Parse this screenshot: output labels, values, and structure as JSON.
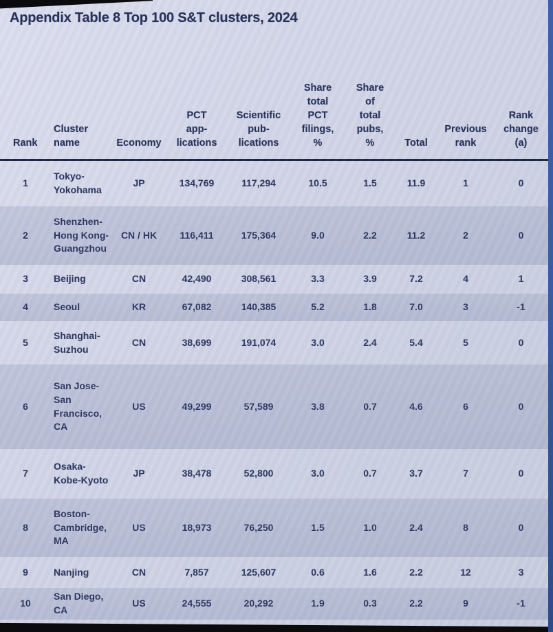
{
  "title": "Appendix Table 8 Top 100 S&T clusters, 2024",
  "colors": {
    "screen_background": "#d2d5e6",
    "row_stripe_dark": "#c3c9dc",
    "text_navy": "#222d54",
    "header_rule": "#17213f",
    "bezel_black": "#0b0b0d",
    "right_edge_blue": "#3a5ba3"
  },
  "table": {
    "columns": [
      {
        "key": "rank",
        "label": "Rank"
      },
      {
        "key": "cluster",
        "label": "Cluster\nname"
      },
      {
        "key": "economy",
        "label": "Economy"
      },
      {
        "key": "pct",
        "label": "PCT\napp-\nlications"
      },
      {
        "key": "pubs",
        "label": "Scientific\npub-\nlications"
      },
      {
        "key": "share_pct",
        "label": "Share\ntotal\nPCT\nfilings,\n%"
      },
      {
        "key": "share_pubs",
        "label": "Share\nof\ntotal\npubs,\n%"
      },
      {
        "key": "total",
        "label": "Total"
      },
      {
        "key": "prev",
        "label": "Previous\nrank"
      },
      {
        "key": "change",
        "label": "Rank\nchange\n(a)"
      }
    ],
    "rows": [
      {
        "rank": "1",
        "cluster": "Tokyo-\nYokohama",
        "economy": "JP",
        "pct": "134,769",
        "pubs": "117,294",
        "share_pct": "10.5",
        "share_pubs": "1.5",
        "total": "11.9",
        "prev": "1",
        "change": "0"
      },
      {
        "rank": "2",
        "cluster": "Shenzhen-\nHong Kong-\nGuangzhou",
        "economy": "CN / HK",
        "pct": "116,411",
        "pubs": "175,364",
        "share_pct": "9.0",
        "share_pubs": "2.2",
        "total": "11.2",
        "prev": "2",
        "change": "0"
      },
      {
        "rank": "3",
        "cluster": "Beijing",
        "economy": "CN",
        "pct": "42,490",
        "pubs": "308,561",
        "share_pct": "3.3",
        "share_pubs": "3.9",
        "total": "7.2",
        "prev": "4",
        "change": "1"
      },
      {
        "rank": "4",
        "cluster": "Seoul",
        "economy": "KR",
        "pct": "67,082",
        "pubs": "140,385",
        "share_pct": "5.2",
        "share_pubs": "1.8",
        "total": "7.0",
        "prev": "3",
        "change": "-1"
      },
      {
        "rank": "5",
        "cluster": "Shanghai-\nSuzhou",
        "economy": "CN",
        "pct": "38,699",
        "pubs": "191,074",
        "share_pct": "3.0",
        "share_pubs": "2.4",
        "total": "5.4",
        "prev": "5",
        "change": "0"
      },
      {
        "rank": "6",
        "cluster": "San Jose-\nSan\nFrancisco,\nCA",
        "economy": "US",
        "pct": "49,299",
        "pubs": "57,589",
        "share_pct": "3.8",
        "share_pubs": "0.7",
        "total": "4.6",
        "prev": "6",
        "change": "0"
      },
      {
        "rank": "7",
        "cluster": "Osaka-\nKobe-Kyoto",
        "economy": "JP",
        "pct": "38,478",
        "pubs": "52,800",
        "share_pct": "3.0",
        "share_pubs": "0.7",
        "total": "3.7",
        "prev": "7",
        "change": "0"
      },
      {
        "rank": "8",
        "cluster": "Boston-\nCambridge,\nMA",
        "economy": "US",
        "pct": "18,973",
        "pubs": "76,250",
        "share_pct": "1.5",
        "share_pubs": "1.0",
        "total": "2.4",
        "prev": "8",
        "change": "0"
      },
      {
        "rank": "9",
        "cluster": "Nanjing",
        "economy": "CN",
        "pct": "7,857",
        "pubs": "125,607",
        "share_pct": "0.6",
        "share_pubs": "1.6",
        "total": "2.2",
        "prev": "12",
        "change": "3"
      },
      {
        "rank": "10",
        "cluster": "San Diego,\nCA",
        "economy": "US",
        "pct": "24,555",
        "pubs": "20,292",
        "share_pct": "1.9",
        "share_pubs": "0.3",
        "total": "2.2",
        "prev": "9",
        "change": "-1"
      }
    ]
  }
}
